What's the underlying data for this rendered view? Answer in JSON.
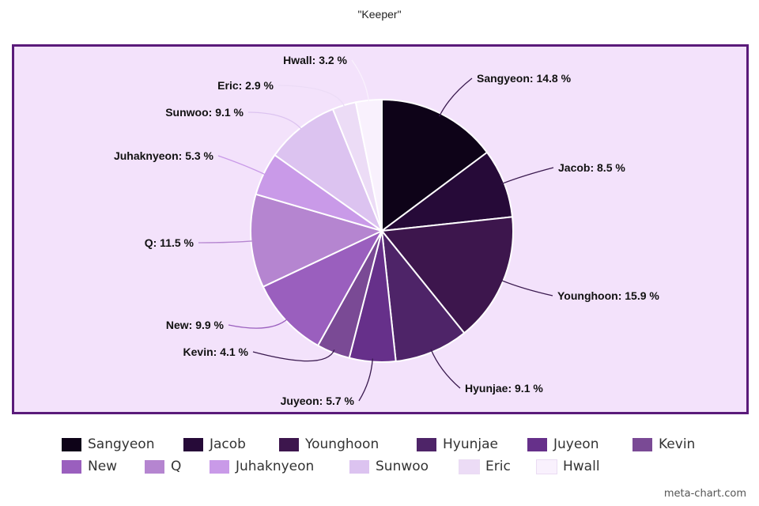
{
  "chart_data": {
    "type": "pie",
    "title": "\"Keeper\"",
    "slices": [
      {
        "label": "Sangyeon",
        "value": 14.8,
        "display": "Sangyeon: 14.8 %",
        "color": "#0e0318"
      },
      {
        "label": "Jacob",
        "value": 8.5,
        "display": "Jacob: 8.5 %",
        "color": "#260a38"
      },
      {
        "label": "Younghoon",
        "value": 15.9,
        "display": "Younghoon: 15.9 %",
        "color": "#3d164d"
      },
      {
        "label": "Hyunjae",
        "value": 9.1,
        "display": "Hyunjae: 9.1 %",
        "color": "#4e2468"
      },
      {
        "label": "Juyeon",
        "value": 5.7,
        "display": "Juyeon: 5.7 %",
        "color": "#66308a"
      },
      {
        "label": "Kevin",
        "value": 4.1,
        "display": "Kevin: 4.1 %",
        "color": "#7a4a95"
      },
      {
        "label": "New",
        "value": 9.9,
        "display": "New: 9.9 %",
        "color": "#9a5fbe"
      },
      {
        "label": "Q",
        "value": 11.5,
        "display": "Q: 11.5 %",
        "color": "#b585d0"
      },
      {
        "label": "Juhaknyeon",
        "value": 5.3,
        "display": "Juhaknyeon: 5.3 %",
        "color": "#c99ae8"
      },
      {
        "label": "Sunwoo",
        "value": 9.1,
        "display": "Sunwoo: 9.1 %",
        "color": "#dcc3f0"
      },
      {
        "label": "Eric",
        "value": 2.9,
        "display": "Eric: 2.9 %",
        "color": "#ecdcf6"
      },
      {
        "label": "Hwall",
        "value": 3.2,
        "display": "Hwall: 3.2 %",
        "color": "#f9f1fd"
      }
    ],
    "legend_position": "bottom"
  },
  "colors": {
    "frame_border": "#5a1a7a",
    "plot_background": "#f3e2fb",
    "leader_line": "#3a1a4f"
  },
  "watermark": "meta-chart.com"
}
